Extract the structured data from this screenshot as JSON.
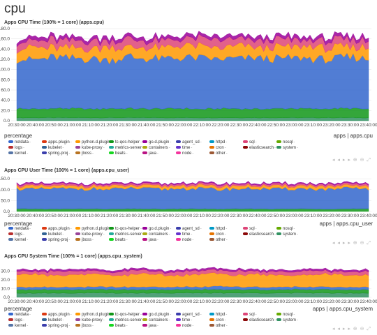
{
  "page": {
    "title": "cpu"
  },
  "legend_dims": [
    "netdata",
    "apps.plugin",
    "python.d.plugin",
    "tc-qos-helper",
    "go.d.plugin",
    "agent_sd",
    "httpd",
    "sql",
    "nosql",
    "logs",
    "kubelet",
    "kube-proxy",
    "metrics-server",
    "containers",
    "time",
    "cron",
    "elasticsearch",
    "system",
    "kernel",
    "spring-proj",
    "jboss",
    "beats",
    "java",
    "node",
    "other"
  ],
  "legend_value_placeholder": "-",
  "colors": {
    "netdata": "#3366cc",
    "apps.plugin": "#dc3912",
    "python.d.plugin": "#ff9900",
    "tc-qos-helper": "#109618",
    "go.d.plugin": "#990099",
    "agent_sd": "#3b3eac",
    "httpd": "#0099c6",
    "sql": "#dd4477",
    "nosql": "#66aa00",
    "logs": "#b82e2e",
    "kubelet": "#316395",
    "kube-proxy": "#994499",
    "metrics-server": "#22aa99",
    "containers": "#aaaa11",
    "time": "#6633cc",
    "cron": "#e67300",
    "elasticsearch": "#8b0707",
    "system": "#329262",
    "kernel": "#5574a6",
    "spring-proj": "#3b3eac",
    "jboss": "#b77322",
    "beats": "#16d620",
    "java": "#b91383",
    "node": "#f4359e",
    "other": "#9c5935"
  },
  "x_ticks": [
    "20:30:00",
    "20:40:00",
    "20:50:00",
    "21:00:00",
    "21:10:00",
    "21:20:00",
    "21:30:00",
    "21:40:00",
    "21:50:00",
    "22:00:00",
    "22:10:00",
    "22:20:00",
    "22:30:00",
    "22:40:00",
    "22:50:00",
    "23:00:00",
    "23:10:00",
    "23:20:00",
    "23:30:00",
    "23:40:00"
  ],
  "controls": "◂ ◂ ▸ ▸ ⊕ ⊖ ⤢",
  "chart_data": [
    {
      "type": "area",
      "title": "Apps CPU Time (100% = 1 core) (apps.cpu)",
      "units": "percentage",
      "context": "apps | apps.cpu",
      "ylim": [
        0,
        180
      ],
      "y_ticks": [
        "0.0",
        "20.0",
        "40.0",
        "60.0",
        "80.0",
        "100.0",
        "120.0",
        "140.0",
        "160.0",
        "180.0"
      ],
      "y_tick_values": [
        0,
        20,
        40,
        60,
        80,
        100,
        120,
        140,
        160,
        180
      ],
      "x": [
        "20:30:00",
        "20:40:00",
        "20:50:00",
        "21:00:00",
        "21:10:00",
        "21:20:00",
        "21:30:00",
        "21:40:00",
        "21:50:00",
        "22:00:00",
        "22:10:00",
        "22:20:00",
        "22:30:00",
        "22:40:00",
        "22:50:00",
        "23:00:00",
        "23:10:00",
        "23:20:00",
        "23:30:00",
        "23:40:00"
      ],
      "series": [
        {
          "name": "system",
          "values": [
            6,
            6,
            6,
            6,
            6,
            6,
            6,
            6,
            6,
            6,
            6,
            6,
            6,
            6,
            6,
            6,
            6,
            6,
            6,
            6
          ]
        },
        {
          "name": "tc-qos-helper",
          "values": [
            18,
            17,
            18,
            18,
            17,
            18,
            18,
            17,
            18,
            18,
            17,
            18,
            18,
            17,
            18,
            18,
            17,
            18,
            18,
            17
          ]
        },
        {
          "name": "netdata",
          "values": [
            98,
            96,
            100,
            97,
            99,
            95,
            101,
            98,
            97,
            100,
            99,
            96,
            98,
            100,
            97,
            99,
            98,
            96,
            100,
            98
          ]
        },
        {
          "name": "python.d.plugin",
          "values": [
            20,
            24,
            18,
            22,
            19,
            26,
            17,
            23,
            21,
            24,
            22,
            20,
            25,
            19,
            23,
            21,
            24,
            22,
            19,
            23
          ]
        },
        {
          "name": "sql",
          "values": [
            14,
            12,
            16,
            13,
            15,
            11,
            17,
            12,
            14,
            13,
            15,
            16,
            12,
            14,
            15,
            13,
            12,
            15,
            14,
            13
          ]
        },
        {
          "name": "go.d.plugin",
          "values": [
            6,
            7,
            6,
            7,
            6,
            7,
            6,
            7,
            6,
            7,
            6,
            7,
            6,
            7,
            6,
            7,
            6,
            7,
            6,
            7
          ]
        }
      ]
    },
    {
      "type": "area",
      "title": "Apps CPU User Time (100% = 1 core) (apps.cpu_user)",
      "units": "percentage",
      "context": "apps | apps.cpu_user",
      "ylim": [
        0,
        160
      ],
      "y_ticks": [
        "0.0",
        "50.0",
        "100.0",
        "150.0"
      ],
      "y_tick_values": [
        0,
        50,
        100,
        150
      ],
      "x": [
        "20:30:00",
        "20:40:00",
        "20:50:00",
        "21:00:00",
        "21:10:00",
        "21:20:00",
        "21:30:00",
        "21:40:00",
        "21:50:00",
        "22:00:00",
        "22:10:00",
        "22:20:00",
        "22:30:00",
        "22:40:00",
        "22:50:00",
        "23:00:00",
        "23:10:00",
        "23:20:00",
        "23:30:00",
        "23:40:00"
      ],
      "series": [
        {
          "name": "tc-qos-helper",
          "values": [
            12,
            12,
            11,
            12,
            12,
            11,
            12,
            12,
            11,
            12,
            12,
            11,
            12,
            12,
            11,
            12,
            12,
            11,
            12,
            12
          ]
        },
        {
          "name": "netdata",
          "values": [
            92,
            90,
            94,
            91,
            93,
            89,
            95,
            92,
            91,
            94,
            93,
            90,
            92,
            94,
            91,
            93,
            92,
            90,
            94,
            92
          ]
        },
        {
          "name": "python.d.plugin",
          "values": [
            12,
            14,
            11,
            13,
            12,
            15,
            10,
            13,
            12,
            14,
            13,
            12,
            15,
            11,
            13,
            12,
            14,
            13,
            11,
            13
          ]
        },
        {
          "name": "sql",
          "values": [
            8,
            7,
            9,
            8,
            8,
            7,
            9,
            7,
            8,
            8,
            9,
            9,
            7,
            8,
            9,
            8,
            7,
            9,
            8,
            8
          ]
        },
        {
          "name": "go.d.plugin",
          "values": [
            4,
            5,
            4,
            5,
            4,
            5,
            4,
            5,
            4,
            5,
            4,
            5,
            4,
            5,
            4,
            5,
            4,
            5,
            4,
            5
          ]
        }
      ]
    },
    {
      "type": "area",
      "title": "Apps CPU System Time (100% = 1 core) (apps.cpu_system)",
      "units": "percentage",
      "context": "apps | apps.cpu_system",
      "ylim": [
        0,
        40
      ],
      "y_ticks": [
        "0.0",
        "10.0",
        "20.0",
        "30.0"
      ],
      "y_tick_values": [
        0,
        10,
        20,
        30
      ],
      "x": [
        "20:30:00",
        "20:40:00",
        "20:50:00",
        "21:00:00",
        "21:10:00",
        "21:20:00",
        "21:30:00",
        "21:40:00",
        "21:50:00",
        "22:00:00",
        "22:10:00",
        "22:20:00",
        "22:30:00",
        "22:40:00",
        "22:50:00",
        "23:00:00",
        "23:10:00",
        "23:20:00",
        "23:30:00",
        "23:40:00"
      ],
      "series": [
        {
          "name": "system",
          "values": [
            5,
            5,
            5,
            5,
            5,
            5,
            5,
            5,
            5,
            5,
            5,
            5,
            5,
            5,
            5,
            5,
            5,
            5,
            5,
            5
          ]
        },
        {
          "name": "tc-qos-helper",
          "values": [
            4,
            4,
            4,
            4,
            4,
            4,
            4,
            4,
            4,
            4,
            4,
            4,
            4,
            4,
            4,
            4,
            4,
            4,
            4,
            4
          ]
        },
        {
          "name": "netdata",
          "values": [
            3,
            3,
            3,
            3,
            3,
            3,
            3,
            3,
            3,
            3,
            3,
            4,
            3,
            3,
            3,
            3,
            3,
            3,
            3,
            3
          ]
        },
        {
          "name": "python.d.plugin",
          "values": [
            14,
            15,
            13,
            14,
            15,
            13,
            14,
            15,
            14,
            13,
            15,
            14,
            13,
            15,
            14,
            13,
            14,
            15,
            13,
            14
          ]
        },
        {
          "name": "sql",
          "values": [
            4,
            3,
            5,
            4,
            4,
            3,
            5,
            4,
            3,
            5,
            4,
            4,
            5,
            3,
            4,
            4,
            5,
            3,
            4,
            4
          ]
        },
        {
          "name": "go.d.plugin",
          "values": [
            2,
            2,
            2,
            2,
            2,
            2,
            2,
            2,
            2,
            2,
            2,
            2,
            2,
            2,
            2,
            2,
            2,
            2,
            2,
            2
          ]
        }
      ]
    }
  ]
}
